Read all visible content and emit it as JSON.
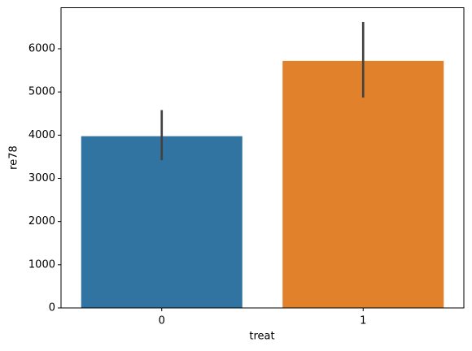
{
  "chart_data": {
    "type": "bar",
    "x_label": "treat",
    "y_label": "re78",
    "categories": [
      "0",
      "1"
    ],
    "values": [
      3976,
      5720
    ],
    "ci_low": [
      3420,
      4870
    ],
    "ci_high": [
      4580,
      6620
    ],
    "colors": [
      "#3274a1",
      "#e1812c"
    ],
    "error_color": "#424242",
    "ylim": [
      0,
      6950
    ],
    "yticks": [
      0,
      1000,
      2000,
      3000,
      4000,
      5000,
      6000
    ],
    "grid": false
  }
}
